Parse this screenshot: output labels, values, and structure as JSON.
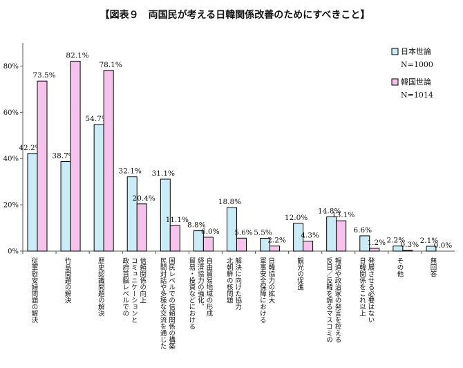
{
  "chart_data": {
    "type": "bar",
    "title": "【図表９　両国民が考える日韓関係改善のためにすべきこと】",
    "categories": [
      [
        "従軍慰安婦問題の解決"
      ],
      [
        "竹島問題の解決"
      ],
      [
        "歴史認識問題の解決"
      ],
      [
        "政府首脳レベルでの",
        "コミュニケーションと",
        "信頼関係の向上"
      ],
      [
        "民間対話や多様な交流を通じた",
        "国民レベルでの信頼関係の構築"
      ],
      [
        "貿易・投資などにおける",
        "経済協力の強化、",
        "自由貿易地域の形成"
      ],
      [
        "北朝鮮の核問題",
        "解決に向けた協力"
      ],
      [
        "軍事安全保障における",
        "日韓協力の拡大"
      ],
      [
        "観光の促進"
      ],
      [
        "反日／反韓を煽るマスコミの",
        "報道や政治家の発言を控える"
      ],
      [
        "日韓関係をこれ以上",
        "発展させる必要はない"
      ],
      [
        "その他"
      ],
      [
        "無回答"
      ]
    ],
    "series": [
      {
        "name": "日本世論",
        "note": "N=1000",
        "color": "#c9ecf7",
        "values": [
          42.2,
          38.7,
          54.7,
          32.1,
          31.1,
          8.8,
          18.8,
          5.5,
          12.0,
          14.8,
          6.6,
          2.2,
          2.1
        ]
      },
      {
        "name": "韓国世論",
        "note": "N=1014",
        "color": "#f5c3ec",
        "values": [
          73.5,
          82.1,
          78.1,
          20.4,
          11.1,
          6.0,
          5.6,
          2.2,
          4.3,
          13.1,
          1.2,
          0.3,
          0.0
        ]
      }
    ],
    "value_labels": [
      [
        "42.2%",
        "73.5%"
      ],
      [
        "38.7%",
        "82.1%"
      ],
      [
        "54.7%",
        "78.1%"
      ],
      [
        "32.1%",
        "20.4%"
      ],
      [
        "31.1%",
        "11.1%"
      ],
      [
        "8.8%",
        "6.0%"
      ],
      [
        "18.8%",
        "5.6%"
      ],
      [
        "5.5%",
        "2.2%"
      ],
      [
        "12.0%",
        "4.3%"
      ],
      [
        "14.8%",
        "13.1%"
      ],
      [
        "6.6%",
        "1.2%"
      ],
      [
        "2.2%",
        "0.3%"
      ],
      [
        "2.1%",
        "0.0%"
      ]
    ],
    "ylim": [
      0,
      90
    ],
    "yticks": [
      0,
      20,
      40,
      60,
      80
    ],
    "ytick_labels": [
      "0%",
      "20%",
      "40%",
      "60%",
      "80%"
    ],
    "xlabel": "",
    "ylabel": "",
    "grid": false,
    "legend_position": "top-right"
  }
}
